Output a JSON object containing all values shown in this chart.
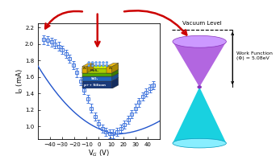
{
  "plot_bg": "#ffffff",
  "fig_bg": "#ffffff",
  "x_label": "V$_G$ (V)",
  "y_label": "I$_D$ (mA)",
  "xlim": [
    -50,
    50
  ],
  "ylim": [
    0.85,
    2.25
  ],
  "yticks": [
    1.0,
    1.2,
    1.4,
    1.6,
    1.8,
    2.0,
    2.2
  ],
  "xticks": [
    -40,
    -30,
    -20,
    -10,
    0,
    10,
    20,
    30,
    40
  ],
  "vg_data": [
    -45,
    -42,
    -39,
    -36,
    -33,
    -30,
    -27,
    -24,
    -21,
    -18,
    -15,
    -12,
    -9,
    -6,
    -3,
    0,
    3,
    6,
    9,
    12,
    15,
    18,
    21,
    24,
    27,
    30,
    33,
    36,
    39,
    42,
    45
  ],
  "id_data": [
    2.05,
    2.04,
    2.02,
    2.0,
    1.97,
    1.93,
    1.88,
    1.82,
    1.74,
    1.65,
    1.55,
    1.44,
    1.33,
    1.22,
    1.12,
    1.03,
    0.97,
    0.93,
    0.91,
    0.91,
    0.93,
    0.97,
    1.02,
    1.08,
    1.15,
    1.22,
    1.29,
    1.36,
    1.41,
    1.46,
    1.5
  ],
  "err_data": [
    0.05,
    0.05,
    0.05,
    0.05,
    0.05,
    0.05,
    0.05,
    0.05,
    0.05,
    0.05,
    0.05,
    0.05,
    0.05,
    0.05,
    0.05,
    0.05,
    0.05,
    0.05,
    0.05,
    0.05,
    0.05,
    0.05,
    0.05,
    0.05,
    0.05,
    0.05,
    0.05,
    0.05,
    0.05,
    0.05,
    0.05
  ],
  "line_color": "#2255cc",
  "marker_color": "#4477dd",
  "arrow_color": "#cc0000",
  "cone_top_color": "#aa55dd",
  "cone_bottom_color": "#00ccdd",
  "vacuum_level_text": "Vacuum Level",
  "work_function_text": "Work Function\n(Φ) = 5.08eV",
  "dirac_point_vg": 12
}
